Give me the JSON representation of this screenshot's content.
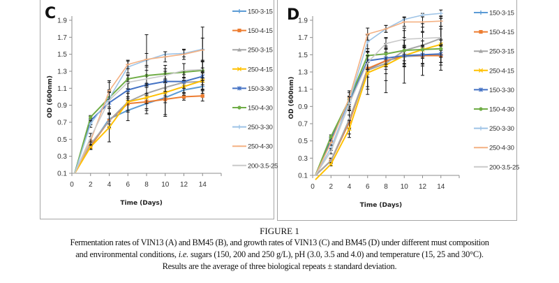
{
  "figure": {
    "title": "FIGURE 1",
    "caption_line1": "Fermentation rates of VIN13 (A) and BM45 (B), and growth rates of VIN13 (C) and BM45 (D) under different must composition",
    "caption_line2_pre": "and environmental conditions, ",
    "caption_line2_italic": "i.e.",
    "caption_line2_post": " sugars (150, 200 and 250 g/L), pH (3.0, 3.5 and 4.0) and temperature (15, 25 and 30°C).",
    "caption_line3": "Results are the average of three biological repeats ± standard deviation."
  },
  "chart_data": [
    {
      "type": "line",
      "panel": "C",
      "xlabel": "Time (Days)",
      "ylabel": "OD (600nm)",
      "xlim": [
        0,
        16
      ],
      "ylim": [
        0.1,
        2.0
      ],
      "xticks": [
        0,
        2,
        4,
        6,
        8,
        10,
        12,
        14
      ],
      "yticks": [
        0.1,
        0.3,
        0.5,
        0.7,
        0.9,
        1.1,
        1.3,
        1.5,
        1.7,
        1.9
      ],
      "legend_position": "right",
      "x": [
        0.3,
        2,
        4,
        6,
        8,
        10,
        12,
        14
      ],
      "series": [
        {
          "name": "150-3-15",
          "color": "#5b9bd5",
          "marker": "plus",
          "values": [
            0.1,
            0.42,
            0.74,
            0.84,
            0.92,
            0.99,
            1.08,
            1.12
          ],
          "err": [
            0,
            0.04,
            0.06,
            0.12,
            0.12,
            0.2,
            0.1,
            0.08
          ]
        },
        {
          "name": "150-4-15",
          "color": "#ed7d31",
          "marker": "square",
          "values": [
            0.1,
            0.42,
            0.72,
            0.92,
            0.94,
            0.97,
            1.0,
            1.01
          ],
          "err": [
            0,
            0.04,
            0.08,
            0.08,
            0.08,
            0.2,
            0.04,
            0.06
          ]
        },
        {
          "name": "250-3-15",
          "color": "#a5a5a5",
          "marker": "triangle",
          "values": [
            0.1,
            0.44,
            0.72,
            0.94,
            1.04,
            1.11,
            1.17,
            1.18
          ],
          "err": [
            0,
            0.05,
            0.08,
            0.1,
            0.12,
            0.1,
            0.12,
            0.1
          ]
        },
        {
          "name": "250-4-15",
          "color": "#ffc000",
          "marker": "x",
          "values": [
            0.1,
            0.41,
            0.64,
            0.94,
            0.99,
            1.05,
            1.12,
            1.19
          ],
          "err": [
            0,
            0.03,
            0.17,
            0.12,
            0.15,
            0.12,
            0.1,
            0.1
          ]
        },
        {
          "name": "150-3-30",
          "color": "#4472c4",
          "marker": "star",
          "values": [
            0.1,
            0.72,
            0.93,
            1.08,
            1.14,
            1.18,
            1.18,
            1.24
          ],
          "err": [
            0,
            0.05,
            0.12,
            0.1,
            0.1,
            0.12,
            0.08,
            0.1
          ]
        },
        {
          "name": "150-4-30",
          "color": "#70ad47",
          "marker": "circle",
          "values": [
            0.1,
            0.76,
            0.99,
            1.21,
            1.25,
            1.27,
            1.29,
            1.31
          ],
          "err": [
            0,
            0.02,
            0.2,
            0.05,
            0.1,
            0.1,
            0.1,
            0.12
          ]
        },
        {
          "name": "250-3-30",
          "color": "#9dc3e6",
          "marker": "plus",
          "values": [
            0.1,
            0.68,
            0.98,
            1.35,
            1.43,
            1.5,
            1.51,
            1.56
          ],
          "err": [
            0,
            0.04,
            0.1,
            0.07,
            0.3,
            0.03,
            0.04,
            0.26
          ]
        },
        {
          "name": "250-4-30",
          "color": "#f4b183",
          "marker": "dash",
          "values": [
            0.1,
            0.48,
            1.07,
            1.38,
            1.44,
            1.47,
            1.5,
            1.55
          ],
          "err": [
            0,
            0.05,
            0.1,
            0.05,
            0.07,
            0.06,
            0.06,
            0.14
          ]
        },
        {
          "name": "200-3.5-25",
          "color": "#c9c9c9",
          "marker": "none",
          "values": [
            0.1,
            0.52,
            0.96,
            1.17,
            1.21,
            1.25,
            1.31,
            1.32
          ],
          "err": [
            0,
            0.05,
            0.1,
            0.08,
            0.1,
            0.08,
            0.08,
            0.1
          ]
        }
      ]
    },
    {
      "type": "line",
      "panel": "D",
      "xlabel": "Time (Days)",
      "ylabel": "OD (600nm)",
      "xlim": [
        0,
        16
      ],
      "ylim": [
        0.1,
        2.0
      ],
      "xticks": [
        0,
        2,
        4,
        6,
        8,
        10,
        12,
        14
      ],
      "yticks": [
        0.1,
        0.3,
        0.5,
        0.7,
        0.9,
        1.1,
        1.3,
        1.5,
        1.7,
        1.9
      ],
      "legend_position": "right",
      "x": [
        0.3,
        2,
        4,
        6,
        8,
        10,
        12,
        14
      ],
      "series": [
        {
          "name": "150-3-15",
          "color": "#5b9bd5",
          "marker": "plus",
          "values": [
            0.1,
            0.27,
            0.72,
            1.33,
            1.43,
            1.48,
            1.49,
            1.5
          ],
          "err": [
            0,
            0.03,
            0.14,
            0.2,
            0.15,
            0.12,
            0.12,
            0.12
          ]
        },
        {
          "name": "150-4-15",
          "color": "#ed7d31",
          "marker": "square",
          "values": [
            0.1,
            0.27,
            0.72,
            1.34,
            1.43,
            1.49,
            1.49,
            1.49
          ],
          "err": [
            0,
            0.03,
            0.08,
            0.1,
            0.1,
            0.12,
            0.1,
            0.08
          ]
        },
        {
          "name": "250-3-15",
          "color": "#a5a5a5",
          "marker": "triangle",
          "values": [
            0.1,
            0.27,
            0.75,
            1.32,
            1.4,
            1.55,
            1.61,
            1.69
          ],
          "err": [
            0,
            0.03,
            0.1,
            0.22,
            0.2,
            0.15,
            0.15,
            0.14
          ]
        },
        {
          "name": "250-4-15",
          "color": "#ffc000",
          "marker": "x",
          "values": [
            0.05,
            0.23,
            0.64,
            1.29,
            1.38,
            1.49,
            1.56,
            1.62
          ],
          "err": [
            0,
            0.02,
            0.1,
            0.25,
            0.32,
            0.32,
            0.3,
            0.3
          ]
        },
        {
          "name": "150-3-30",
          "color": "#4472c4",
          "marker": "star",
          "values": [
            0.1,
            0.52,
            0.96,
            1.43,
            1.46,
            1.49,
            1.5,
            1.51
          ],
          "err": [
            0,
            0.03,
            0.1,
            0.1,
            0.1,
            0.1,
            0.1,
            0.1
          ]
        },
        {
          "name": "150-4-30",
          "color": "#70ad47",
          "marker": "circle",
          "values": [
            0.1,
            0.55,
            0.98,
            1.49,
            1.51,
            1.55,
            1.56,
            1.57
          ],
          "err": [
            0,
            0.02,
            0.1,
            0.08,
            0.12,
            0.12,
            0.1,
            0.1
          ]
        },
        {
          "name": "250-3-30",
          "color": "#9dc3e6",
          "marker": "plus",
          "values": [
            0.1,
            0.42,
            0.96,
            1.65,
            1.8,
            1.91,
            1.96,
            1.98
          ],
          "err": [
            0,
            0.03,
            0.06,
            0.08,
            0.04,
            0.03,
            0.02,
            0.04
          ]
        },
        {
          "name": "250-4-30",
          "color": "#f4b183",
          "marker": "dash",
          "values": [
            0.1,
            0.48,
            1.0,
            1.74,
            1.8,
            1.88,
            1.88,
            1.89
          ],
          "err": [
            0,
            0.03,
            0.08,
            0.07,
            0.04,
            0.05,
            0.06,
            0.06
          ]
        },
        {
          "name": "200-3.5-25",
          "color": "#c9c9c9",
          "marker": "none",
          "values": [
            0.1,
            0.38,
            0.93,
            1.41,
            1.63,
            1.68,
            1.69,
            1.7
          ],
          "err": [
            0,
            0.03,
            0.08,
            0.08,
            0.06,
            0.1,
            0.08,
            0.1
          ]
        }
      ]
    }
  ],
  "panels": {
    "c": {
      "letter": "C"
    },
    "d": {
      "letter": "D"
    }
  }
}
